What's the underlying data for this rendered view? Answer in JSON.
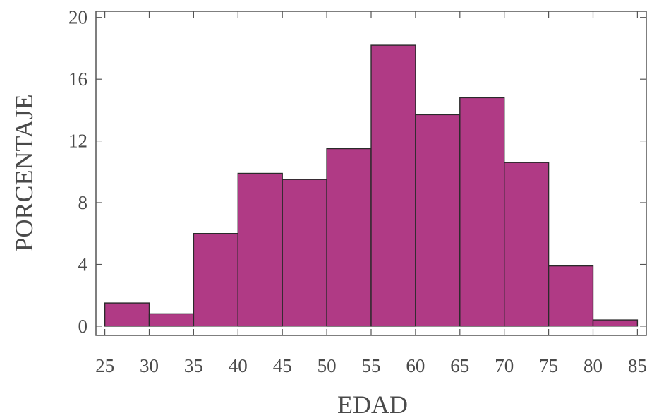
{
  "chart_data": {
    "type": "bar",
    "title": "",
    "xlabel": "EDAD",
    "ylabel": "PORCENTAJE",
    "bins": [
      {
        "from": 25,
        "to": 30,
        "value": 1.5
      },
      {
        "from": 30,
        "to": 35,
        "value": 0.8
      },
      {
        "from": 35,
        "to": 40,
        "value": 6.0
      },
      {
        "from": 40,
        "to": 45,
        "value": 9.9
      },
      {
        "from": 45,
        "to": 50,
        "value": 9.5
      },
      {
        "from": 50,
        "to": 55,
        "value": 11.5
      },
      {
        "from": 55,
        "to": 60,
        "value": 18.2
      },
      {
        "from": 60,
        "to": 65,
        "value": 13.7
      },
      {
        "from": 65,
        "to": 70,
        "value": 14.8
      },
      {
        "from": 70,
        "to": 75,
        "value": 10.6
      },
      {
        "from": 75,
        "to": 80,
        "value": 3.9
      },
      {
        "from": 80,
        "to": 85,
        "value": 0.4
      }
    ],
    "xlim": [
      24,
      86
    ],
    "ylim": [
      -0.6,
      20.4
    ],
    "xticks": [
      25,
      30,
      35,
      40,
      45,
      50,
      55,
      60,
      65,
      70,
      75,
      80,
      85
    ],
    "yticks": [
      0,
      4,
      8,
      12,
      16,
      20
    ],
    "grid": false,
    "bar_color": "#b03a85"
  }
}
